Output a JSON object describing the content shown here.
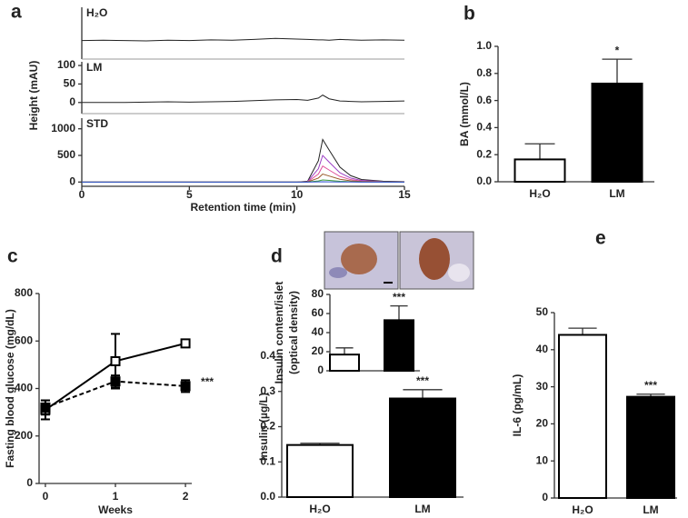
{
  "chart_data": [
    {
      "type": "line",
      "label": "a",
      "x_label": "Retention time (min)",
      "y_label": "Height (mAU)",
      "x": [
        0,
        1,
        2,
        3,
        4,
        5,
        6,
        7,
        8,
        9,
        10,
        10.5,
        11,
        11.2,
        11.5,
        12,
        12.5,
        13,
        14,
        15
      ],
      "xlim": [
        0,
        15
      ],
      "xticks": [
        0,
        5,
        10,
        15
      ],
      "panels": [
        {
          "title": "H₂O",
          "ylim": [
            -50,
            90
          ],
          "series": [
            {
              "color": "#222222",
              "values": [
                0,
                1,
                0,
                -1,
                1,
                0,
                2,
                1,
                3,
                6,
                4,
                3,
                2,
                2,
                1,
                3,
                2,
                1,
                2,
                1
              ]
            }
          ]
        },
        {
          "title": "LM",
          "ylim": [
            -30,
            110
          ],
          "yticks": [
            0,
            50,
            100
          ],
          "series": [
            {
              "color": "#222222",
              "values": [
                0,
                0,
                0,
                1,
                2,
                1,
                2,
                3,
                5,
                7,
                8,
                6,
                12,
                20,
                10,
                4,
                3,
                2,
                3,
                4
              ]
            }
          ]
        },
        {
          "title": "STD",
          "ylim": [
            -80,
            1200
          ],
          "yticks": [
            0,
            500,
            1000
          ],
          "series": [
            {
              "color": "#222222",
              "values": [
                0,
                0,
                0,
                0,
                0,
                0,
                0,
                0,
                0,
                0,
                0,
                16,
                400,
                800,
                600,
                280,
                120,
                48,
                16,
                8
              ]
            },
            {
              "color": "#9b3fc4",
              "values": [
                0,
                0,
                0,
                0,
                0,
                0,
                0,
                0,
                0,
                0,
                0,
                10,
                250,
                500,
                375,
                175,
                75,
                30,
                10,
                5
              ]
            },
            {
              "color": "#e0509a",
              "values": [
                0,
                0,
                0,
                0,
                0,
                0,
                0,
                0,
                0,
                0,
                0,
                6,
                150,
                300,
                225,
                105,
                45,
                18,
                6,
                3
              ]
            },
            {
              "color": "#9a5a2a",
              "values": [
                0,
                0,
                0,
                0,
                0,
                0,
                0,
                0,
                0,
                0,
                0,
                3,
                75,
                150,
                113,
                53,
                23,
                9,
                3,
                2
              ]
            },
            {
              "color": "#3a9a3a",
              "values": [
                0,
                0,
                0,
                0,
                0,
                0,
                0,
                0,
                0,
                0,
                0,
                1,
                20,
                40,
                30,
                14,
                6,
                2,
                1,
                0
              ]
            },
            {
              "color": "#3050d0",
              "values": [
                0,
                0,
                0,
                0,
                0,
                0,
                0,
                0,
                0,
                0,
                0,
                0,
                3,
                5,
                4,
                2,
                1,
                0,
                0,
                0
              ]
            }
          ]
        }
      ]
    },
    {
      "type": "bar",
      "label": "b",
      "y_label": "BA (mmol/L)",
      "categories": [
        "H₂O",
        "LM"
      ],
      "values": [
        0.165,
        0.725
      ],
      "errors": [
        0.115,
        0.18
      ],
      "colors": [
        "#ffffff",
        "#000000"
      ],
      "ylim": [
        0,
        1.0
      ],
      "yticks": [
        {
          "value": 0,
          "label": "0.0"
        },
        0.2,
        0.4,
        0.6,
        0.8,
        {
          "value": 1,
          "label": "1.0"
        }
      ],
      "annotation": "*"
    },
    {
      "type": "line",
      "label": "c",
      "x_label": "Weeks",
      "y_label": "Fasting blood glucose (mg/dL)",
      "x": [
        0,
        1,
        2
      ],
      "xlim": [
        -0.09,
        2.09
      ],
      "xticks": [
        0,
        1,
        2
      ],
      "ylim": [
        0,
        800
      ],
      "yticks": [
        0,
        200,
        400,
        600,
        800
      ],
      "series": [
        {
          "color": "#000000",
          "values": [
            310,
            515,
            590
          ],
          "errors": [
            40,
            115,
            15
          ],
          "marker": "open",
          "dashed": false
        },
        {
          "color": "#000000",
          "values": [
            320,
            430,
            410
          ],
          "errors": [
            30,
            25,
            25
          ],
          "marker": "filled",
          "dashed": true
        }
      ],
      "annotation": "***"
    },
    {
      "type": "bar",
      "label": "d",
      "y_label": "Insulin (µg/L)",
      "categories": [
        "H₂O",
        "LM"
      ],
      "values": [
        0.148,
        0.28
      ],
      "errors": [
        0.005,
        0.025
      ],
      "colors": [
        "#ffffff",
        "#000000"
      ],
      "ylim": [
        0,
        0.4
      ],
      "yticks": [
        {
          "value": 0,
          "label": "0.0"
        },
        0.1,
        0.2,
        0.3,
        0.4
      ],
      "annotation": "***",
      "inset": {
        "type": "bar",
        "y_label": [
          "Insulin content/islet",
          "(optical density)"
        ],
        "values": [
          17,
          53
        ],
        "errors": [
          7,
          15
        ],
        "colors": [
          "#ffffff",
          "#000000"
        ],
        "ylim": [
          0,
          80
        ],
        "yticks": [
          0,
          20,
          40,
          60,
          80
        ],
        "annotation": "***"
      }
    },
    {
      "type": "bar",
      "label": "e",
      "y_label": "IL-6 (pg/mL)",
      "categories": [
        "H₂O",
        "LM"
      ],
      "values": [
        44,
        27.3
      ],
      "errors": [
        1.8,
        0.7
      ],
      "colors": [
        "#ffffff",
        "#000000"
      ],
      "ylim": [
        0,
        50
      ],
      "yticks": [
        0,
        10,
        20,
        30,
        40,
        50
      ],
      "annotation": "***"
    }
  ]
}
